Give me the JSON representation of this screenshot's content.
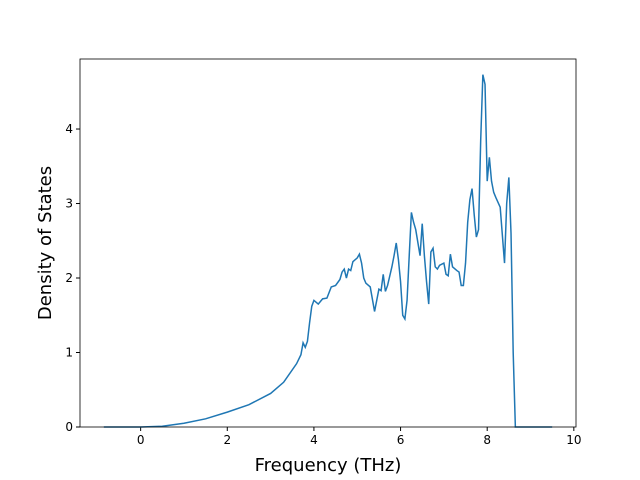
{
  "chart_data": {
    "type": "line",
    "xlabel": "Frequency (THz)",
    "ylabel": "Density of States",
    "xlim": [
      -1.4,
      10.05
    ],
    "ylim": [
      0,
      4.94
    ],
    "xticks": [
      0,
      2,
      4,
      6,
      8,
      10
    ],
    "yticks": [
      0,
      1,
      2,
      3,
      4
    ],
    "x": [
      -0.85,
      0,
      0.5,
      1,
      1.5,
      2,
      2.5,
      3,
      3.3,
      3.6,
      3.7,
      3.75,
      3.8,
      3.85,
      3.9,
      3.95,
      4.0,
      4.1,
      4.2,
      4.3,
      4.4,
      4.5,
      4.6,
      4.65,
      4.7,
      4.75,
      4.8,
      4.85,
      4.9,
      5.0,
      5.05,
      5.1,
      5.15,
      5.2,
      5.3,
      5.4,
      5.5,
      5.55,
      5.6,
      5.65,
      5.7,
      5.8,
      5.85,
      5.9,
      5.95,
      6.0,
      6.05,
      6.1,
      6.15,
      6.2,
      6.25,
      6.3,
      6.35,
      6.45,
      6.5,
      6.55,
      6.6,
      6.65,
      6.7,
      6.75,
      6.8,
      6.85,
      6.9,
      7.0,
      7.05,
      7.1,
      7.15,
      7.2,
      7.3,
      7.35,
      7.4,
      7.45,
      7.5,
      7.55,
      7.6,
      7.65,
      7.7,
      7.75,
      7.8,
      7.85,
      7.9,
      7.95,
      8.0,
      8.05,
      8.1,
      8.15,
      8.2,
      8.3,
      8.4,
      8.45,
      8.5,
      8.55,
      8.6,
      8.65,
      9.5
    ],
    "series": [
      {
        "color": "#1f77b4",
        "values": [
          0,
          0,
          0.01,
          0.05,
          0.11,
          0.2,
          0.3,
          0.45,
          0.6,
          0.85,
          0.97,
          1.13,
          1.07,
          1.15,
          1.4,
          1.62,
          1.7,
          1.65,
          1.72,
          1.73,
          1.88,
          1.9,
          1.98,
          2.08,
          2.12,
          2.0,
          2.12,
          2.1,
          2.22,
          2.27,
          2.32,
          2.2,
          2.0,
          1.93,
          1.88,
          1.55,
          1.85,
          1.83,
          2.05,
          1.82,
          1.9,
          2.15,
          2.3,
          2.47,
          2.25,
          1.95,
          1.5,
          1.45,
          1.7,
          2.3,
          2.88,
          2.75,
          2.65,
          2.3,
          2.73,
          2.3,
          1.95,
          1.65,
          2.35,
          2.4,
          2.15,
          2.12,
          2.17,
          2.2,
          2.05,
          2.03,
          2.32,
          2.15,
          2.1,
          2.08,
          1.9,
          1.9,
          2.2,
          2.75,
          3.05,
          3.2,
          2.85,
          2.55,
          2.65,
          3.85,
          4.73,
          4.6,
          3.3,
          3.62,
          3.3,
          3.15,
          3.08,
          2.95,
          2.2,
          3.0,
          3.35,
          2.6,
          1.0,
          0,
          0
        ]
      }
    ]
  }
}
